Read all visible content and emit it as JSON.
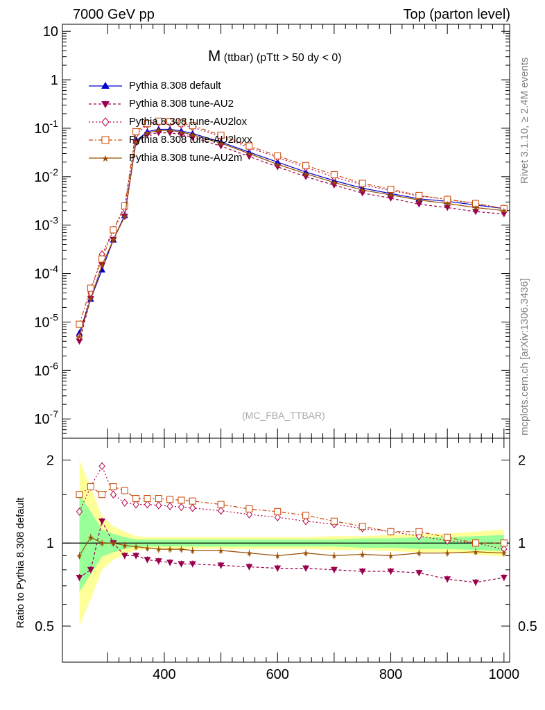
{
  "header": {
    "left": "7000 GeV pp",
    "right": "Top (parton level)"
  },
  "side_labels": {
    "rivet": "Rivet 3.1.10, ≥ 2.4M events",
    "mcplots": "mcplots.cern.ch [arXiv:1306.3436]"
  },
  "plot_title": {
    "main": "M",
    "sub": "(ttbar) (pTtt > 50 dy < 0)"
  },
  "watermark": "(MC_FBA_TTBAR)",
  "ratio_ylabel": "Ratio to Pythia 8.308 default",
  "colors": {
    "default": "#0000cc",
    "AU2": "#99004d",
    "AU2lox": "#b3004d",
    "AU2loxx": "#cc4400",
    "AU2m": "#994d00",
    "band_yellow": "#ffff99",
    "band_green": "#99ff99"
  },
  "chart_data": [
    {
      "type": "line",
      "panel": "main",
      "yscale": "log",
      "ylim": [
        4e-08,
        14
      ],
      "xlim": [
        220,
        1010
      ],
      "y_tick_labels": [
        "10",
        "1",
        "10^-1",
        "10^-2",
        "10^-3",
        "10^-4",
        "10^-5",
        "10^-6",
        "10^-7"
      ],
      "x": [
        250,
        270,
        290,
        310,
        330,
        350,
        370,
        390,
        410,
        430,
        450,
        500,
        550,
        600,
        650,
        700,
        750,
        800,
        850,
        900,
        950,
        1000
      ],
      "series": [
        {
          "name": "Pythia 8.308 default",
          "marker": "triangle",
          "values": [
            6e-06,
            3e-05,
            0.00012,
            0.0005,
            0.0016,
            0.055,
            0.085,
            0.095,
            0.095,
            0.088,
            0.078,
            0.052,
            0.032,
            0.02,
            0.0125,
            0.0083,
            0.0058,
            0.0045,
            0.0035,
            0.0031,
            0.0026,
            0.0022
          ]
        },
        {
          "name": "Pythia 8.308 tune-AU2",
          "marker": "triangle-down",
          "values": [
            4e-06,
            3e-05,
            0.00015,
            0.0005,
            0.0015,
            0.05,
            0.074,
            0.081,
            0.08,
            0.074,
            0.065,
            0.043,
            0.026,
            0.016,
            0.01,
            0.0067,
            0.0046,
            0.0036,
            0.0027,
            0.0023,
            0.0019,
            0.0017
          ]
        },
        {
          "name": "Pythia 8.308 tune-AU2lox",
          "marker": "diamond",
          "values": [
            5e-06,
            4e-05,
            0.00025,
            0.0008,
            0.0022,
            0.075,
            0.118,
            0.13,
            0.128,
            0.118,
            0.105,
            0.068,
            0.04,
            0.025,
            0.0155,
            0.0098,
            0.0068,
            0.0052,
            0.004,
            0.0034,
            0.0028,
            0.0022
          ]
        },
        {
          "name": "Pythia 8.308 tune-AU2loxx",
          "marker": "square",
          "values": [
            9e-06,
            5e-05,
            0.0002,
            0.0008,
            0.0025,
            0.085,
            0.125,
            0.14,
            0.138,
            0.128,
            0.113,
            0.072,
            0.043,
            0.027,
            0.017,
            0.011,
            0.0073,
            0.0055,
            0.0041,
            0.0034,
            0.0028,
            0.0022
          ]
        },
        {
          "name": "Pythia 8.308 tune-AU2m",
          "marker": "star",
          "values": [
            5e-06,
            3e-05,
            0.00015,
            0.0005,
            0.0015,
            0.052,
            0.08,
            0.09,
            0.09,
            0.083,
            0.073,
            0.049,
            0.03,
            0.018,
            0.0115,
            0.0076,
            0.0053,
            0.0042,
            0.0033,
            0.0028,
            0.0023,
            0.002
          ]
        }
      ]
    },
    {
      "type": "line",
      "panel": "ratio",
      "yscale": "log",
      "ylabel": "Ratio to Pythia 8.308 default",
      "ylim": [
        0.37,
        2.4
      ],
      "xlim": [
        220,
        1010
      ],
      "x_ticks": [
        400,
        600,
        800,
        1000
      ],
      "y_ticks": [
        0.5,
        1,
        2
      ],
      "x": [
        250,
        270,
        290,
        310,
        330,
        350,
        370,
        390,
        410,
        430,
        450,
        500,
        550,
        600,
        650,
        700,
        750,
        800,
        850,
        900,
        950,
        1000
      ],
      "band_yellow": [
        2.0,
        1.6,
        1.25,
        1.15,
        1.1,
        1.06,
        1.05,
        1.05,
        1.05,
        1.05,
        1.05,
        1.05,
        1.05,
        1.05,
        1.05,
        1.06,
        1.06,
        1.07,
        1.08,
        1.08,
        1.1,
        1.12
      ],
      "band_green": [
        1.5,
        1.3,
        1.12,
        1.08,
        1.05,
        1.03,
        1.03,
        1.03,
        1.03,
        1.03,
        1.03,
        1.03,
        1.03,
        1.03,
        1.03,
        1.03,
        1.04,
        1.04,
        1.05,
        1.05,
        1.06,
        1.07
      ],
      "series": [
        {
          "name": "Pythia 8.308 tune-AU2",
          "values": [
            0.75,
            0.8,
            1.2,
            1.0,
            0.9,
            0.9,
            0.87,
            0.86,
            0.85,
            0.84,
            0.84,
            0.83,
            0.82,
            0.81,
            0.81,
            0.8,
            0.79,
            0.79,
            0.78,
            0.74,
            0.72,
            0.75
          ]
        },
        {
          "name": "Pythia 8.308 tune-AU2lox",
          "values": [
            1.3,
            1.6,
            1.9,
            1.5,
            1.4,
            1.38,
            1.38,
            1.37,
            1.36,
            1.35,
            1.34,
            1.31,
            1.27,
            1.24,
            1.2,
            1.17,
            1.13,
            1.1,
            1.06,
            1.02,
            1.0,
            0.95
          ]
        },
        {
          "name": "Pythia 8.308 tune-AU2loxx",
          "values": [
            1.5,
            1.6,
            1.5,
            1.6,
            1.55,
            1.45,
            1.45,
            1.45,
            1.44,
            1.43,
            1.42,
            1.38,
            1.33,
            1.3,
            1.26,
            1.2,
            1.15,
            1.1,
            1.1,
            1.05,
            1.0,
            1.0
          ]
        },
        {
          "name": "Pythia 8.308 tune-AU2m",
          "values": [
            0.9,
            1.05,
            1.0,
            1.0,
            0.98,
            0.97,
            0.96,
            0.95,
            0.95,
            0.95,
            0.94,
            0.94,
            0.92,
            0.9,
            0.92,
            0.9,
            0.91,
            0.9,
            0.92,
            0.92,
            0.93,
            0.92
          ]
        }
      ]
    }
  ]
}
